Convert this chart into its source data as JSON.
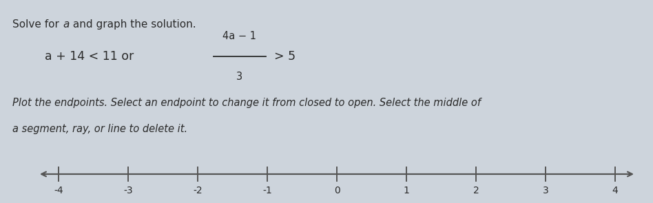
{
  "bg_color": "#cdd4dc",
  "text_color": "#2a2a2a",
  "axis_color": "#555555",
  "title_normal1": "Solve for ",
  "title_italic": "a",
  "title_normal2": " and graph the solution.",
  "eq_left": "a + 14 < 11 or ",
  "eq_frac_num": "4a − 1",
  "eq_frac_den": "3",
  "eq_right": "> 5",
  "instr1": "Plot the endpoints. Select an endpoint to change it from closed to open. Select the middle of",
  "instr2": "a segment, ray, or line to delete it.",
  "tick_positions": [
    -4,
    -3,
    -2,
    -1,
    0,
    1,
    2,
    3,
    4
  ],
  "tick_labels": [
    "-4",
    "-3",
    "-2",
    "-1",
    "0",
    "1",
    "2",
    "3",
    "4"
  ],
  "green_color": "#4CAF50",
  "figsize": [
    9.48,
    2.95
  ],
  "dpi": 100
}
